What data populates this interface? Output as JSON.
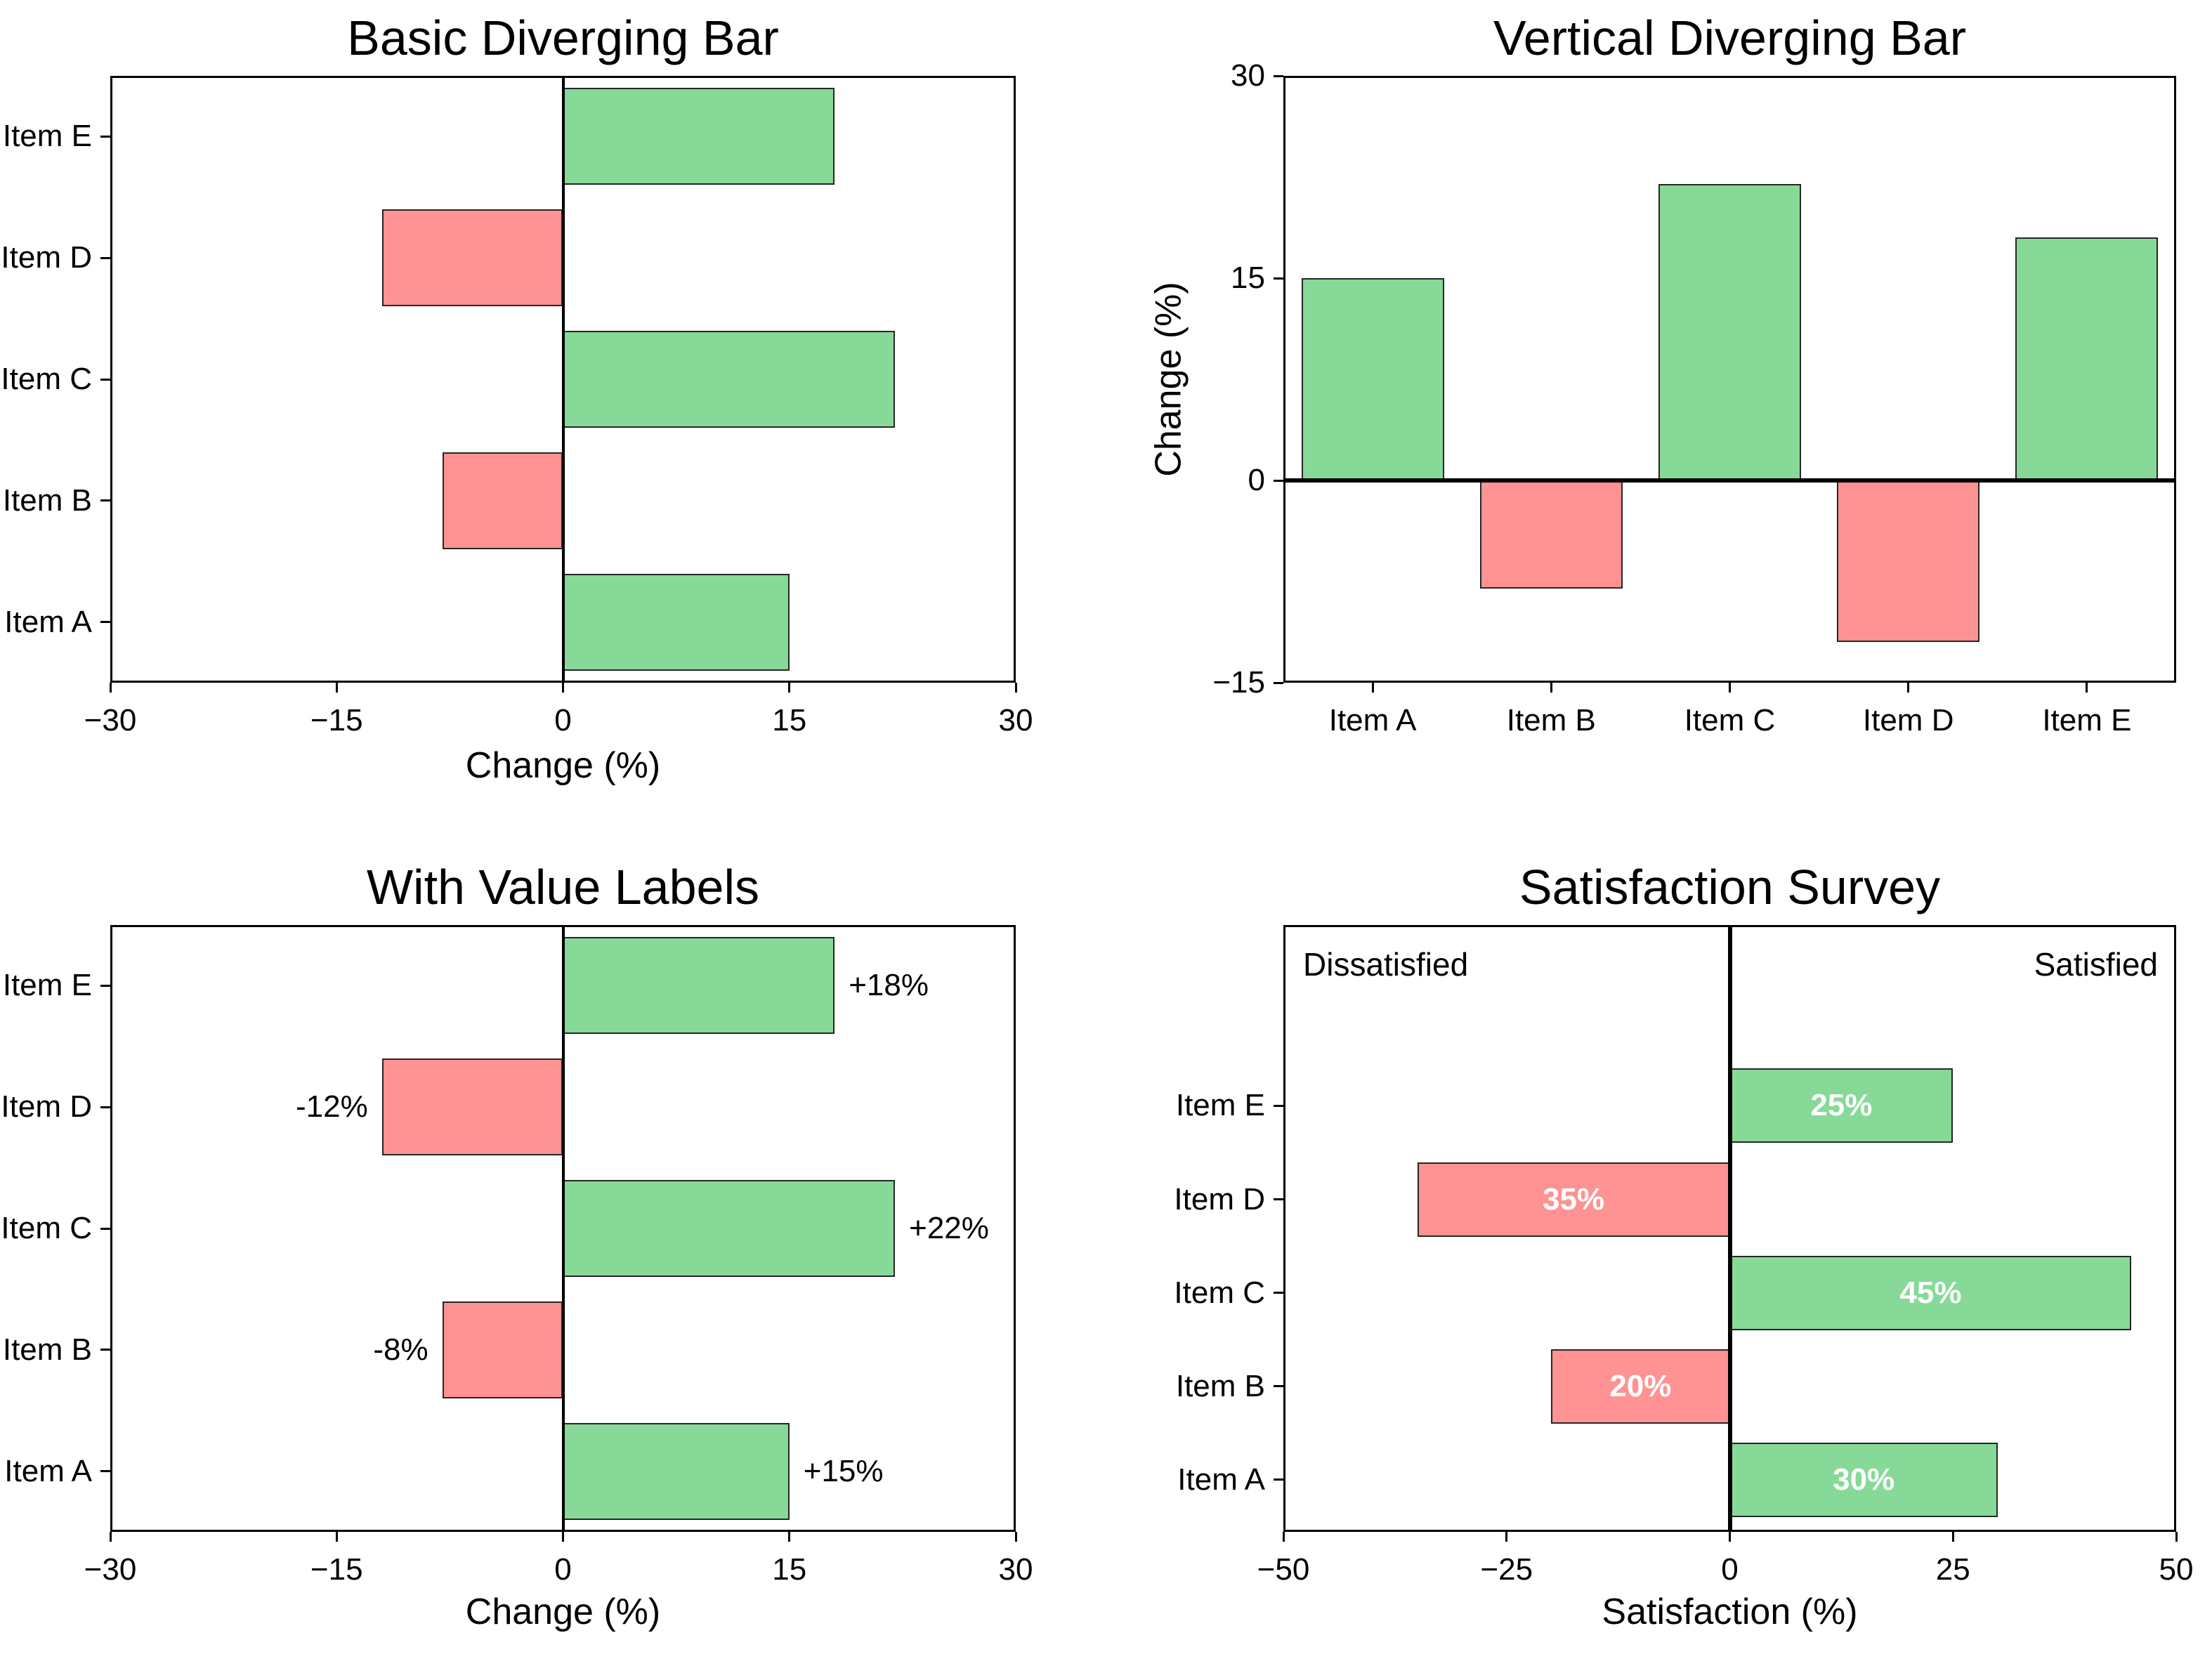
{
  "figure": {
    "background": "#ffffff"
  },
  "colors": {
    "positive": "#86d996",
    "negative": "#ff9393",
    "bar_edge": "#262626",
    "axis": "#000000",
    "text": "#000000",
    "label_on_bar": "#ffffff"
  },
  "chart_data": [
    {
      "type": "bar",
      "orientation": "horizontal",
      "title": "Basic Diverging Bar",
      "xlabel": "Change (%)",
      "xlim": [
        -30,
        30
      ],
      "xtick_values": [
        -30,
        -15,
        0,
        15,
        30
      ],
      "xticks": [
        "−30",
        "−15",
        "0",
        "15",
        "30"
      ],
      "categories": [
        "Item A",
        "Item B",
        "Item C",
        "Item D",
        "Item E"
      ],
      "values": [
        15,
        -8,
        22,
        -12,
        18
      ],
      "grid": false,
      "zero_line": true
    },
    {
      "type": "bar",
      "orientation": "vertical",
      "title": "Vertical Diverging Bar",
      "ylabel": "Change (%)",
      "ylim": [
        -15,
        30
      ],
      "ytick_values": [
        30,
        15,
        0,
        -15
      ],
      "yticks": [
        "30",
        "15",
        "0",
        "−15"
      ],
      "categories": [
        "Item A",
        "Item B",
        "Item C",
        "Item D",
        "Item E"
      ],
      "values": [
        15,
        -8,
        22,
        -12,
        18
      ],
      "grid": false,
      "zero_line": true
    },
    {
      "type": "bar",
      "orientation": "horizontal",
      "title": "With Value Labels",
      "xlabel": "Change (%)",
      "xlim": [
        -30,
        30
      ],
      "xtick_values": [
        -30,
        -15,
        0,
        15,
        30
      ],
      "xticks": [
        "−30",
        "−15",
        "0",
        "15",
        "30"
      ],
      "categories": [
        "Item A",
        "Item B",
        "Item C",
        "Item D",
        "Item E"
      ],
      "values": [
        15,
        -8,
        22,
        -12,
        18
      ],
      "value_labels": [
        "+15%",
        "-8%",
        "+22%",
        "-12%",
        "+18%"
      ],
      "grid": false,
      "zero_line": true
    },
    {
      "type": "bar",
      "orientation": "horizontal",
      "title": "Satisfaction Survey",
      "xlabel": "Satisfaction (%)",
      "xlim": [
        -50,
        50
      ],
      "xtick_values": [
        -50,
        -25,
        0,
        25,
        50
      ],
      "xticks": [
        "−50",
        "−25",
        "0",
        "25",
        "50"
      ],
      "categories": [
        "Item A",
        "Item B",
        "Item C",
        "Item D",
        "Item E"
      ],
      "values": [
        30,
        -20,
        45,
        -35,
        25
      ],
      "bar_labels": [
        "30%",
        "20%",
        "45%",
        "35%",
        "25%"
      ],
      "annotations": {
        "left": "Dissatisfied",
        "right": "Satisfied"
      },
      "grid": false,
      "zero_line": true
    }
  ]
}
